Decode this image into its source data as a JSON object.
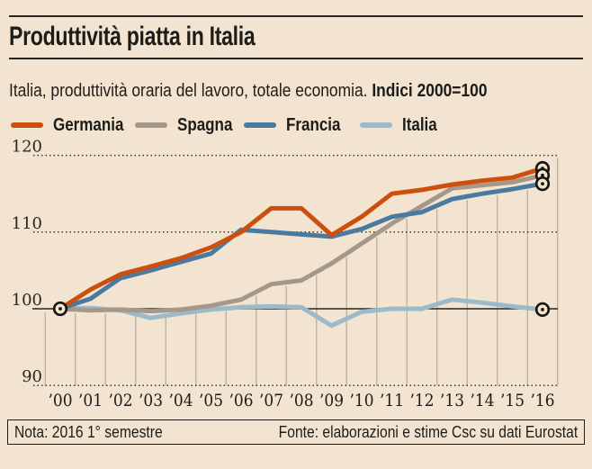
{
  "palette": {
    "background": "#f2e4d0",
    "text": "#1d1c18",
    "rule": "#26241f",
    "vertical_grid": "#bdae99",
    "dotted_grid": "#3a362e",
    "baseline_100": "#26241f",
    "marker_ring": "#181611"
  },
  "chart_data": {
    "type": "line",
    "title": "Produttività piatta in Italia",
    "subtitle": "Italia, produttività oraria del lavoro, totale economia. ",
    "subtitle_bold": "Indici 2000=100",
    "legend_position": "top",
    "grid": {
      "horizontal": "dotted lines at 90, 110, 120; solid reference line at 100",
      "vertical": "year separator lines between categories"
    },
    "ylim": [
      88,
      121.5
    ],
    "y_ticks": [
      90,
      100,
      110,
      120
    ],
    "baseline_value": 100,
    "markers": "ringed dot at shared 2000 start point and at each 2016 line end",
    "categories": [
      "’00",
      "’01",
      "’02",
      "’03",
      "’04",
      "’05",
      "’06",
      "’07",
      "’08",
      "’09",
      "’10",
      "’11",
      "’12",
      "’13",
      "’14",
      "’15",
      "’16"
    ],
    "series": [
      {
        "name": "Germania",
        "color": "#cc4f0e",
        "values": [
          100,
          102.5,
          104.5,
          105.5,
          106.6,
          108.0,
          110.0,
          113.1,
          113.1,
          109.6,
          112.0,
          115.0,
          115.5,
          116.2,
          116.7,
          117.1,
          118.3
        ]
      },
      {
        "name": "Spagna",
        "color": "#a5978a",
        "values": [
          100,
          99.8,
          99.9,
          99.7,
          99.9,
          100.4,
          101.2,
          103.2,
          103.7,
          105.9,
          108.5,
          111.1,
          113.4,
          115.7,
          116.1,
          116.5,
          117.4
        ]
      },
      {
        "name": "Francia",
        "color": "#4a7a9f",
        "values": [
          100,
          101.3,
          104.0,
          105.0,
          106.1,
          107.2,
          110.3,
          110.0,
          109.7,
          109.4,
          110.4,
          112.0,
          112.6,
          114.3,
          115.0,
          115.6,
          116.3
        ]
      },
      {
        "name": "Italia",
        "color": "#9cbac9",
        "values": [
          100,
          100.1,
          99.8,
          98.8,
          99.4,
          99.9,
          100.2,
          100.3,
          100.2,
          97.8,
          99.6,
          100.0,
          100.0,
          101.2,
          100.8,
          100.3,
          99.9
        ]
      }
    ]
  },
  "footer": {
    "note": "Nota: 2016 1° semestre",
    "source": "Fonte: elaborazioni e stime Csc su dati Eurostat"
  }
}
